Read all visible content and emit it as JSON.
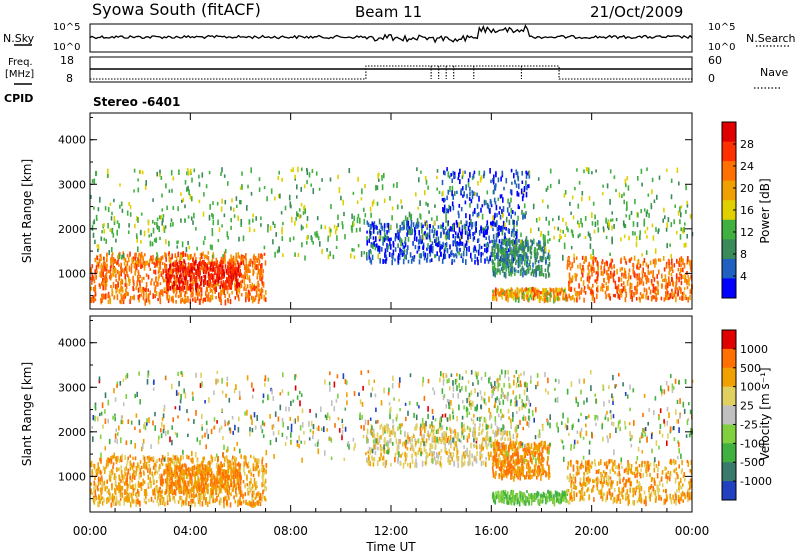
{
  "header": {
    "station": "Syowa South (fitACF)",
    "beam": "Beam 11",
    "date": "21/Oct/2009"
  },
  "nsky_panel": {
    "left_label": "N.Sky",
    "right_label": "N.Search",
    "left_ticks": [
      "10^5",
      "10^0"
    ],
    "right_ticks": [
      "10^5",
      "10^0"
    ]
  },
  "freq_panel": {
    "left_label_1": "Freq.",
    "left_label_2": "[MHz]",
    "left_ticks": [
      "18",
      "8"
    ],
    "right_label": "Nave",
    "right_ticks": [
      "60",
      "0"
    ],
    "cpid_label": "CPID",
    "cpid_value": "Stereo -6401"
  },
  "colors": {
    "power_scale": [
      "#0000ff",
      "#2060c0",
      "#3a8a5a",
      "#40b040",
      "#e0d000",
      "#f0a000",
      "#ff7000",
      "#ff3000",
      "#e00000"
    ],
    "velocity_scale": [
      "#2040c0",
      "#3a7a6a",
      "#40b040",
      "#80d040",
      "#c0c0c0",
      "#e0d060",
      "#f0a000",
      "#ff7000",
      "#e00000"
    ]
  },
  "chart_data": [
    {
      "type": "heatmap",
      "name": "power",
      "ylabel": "Slant Range [km]",
      "yticks": [
        "4000",
        "3000",
        "2000",
        "1000"
      ],
      "ylim": [
        200,
        4600
      ],
      "xlim": [
        0,
        24
      ],
      "colorbar_label": "Power [dB]",
      "colorbar_ticks": [
        "28",
        "24",
        "20",
        "16",
        "12",
        "8",
        "4"
      ],
      "colorbar_range": [
        0,
        32
      ]
    },
    {
      "type": "heatmap",
      "name": "velocity",
      "ylabel": "Slant Range [km]",
      "yticks": [
        "4000",
        "3000",
        "2000",
        "1000"
      ],
      "ylim": [
        200,
        4600
      ],
      "xlim": [
        0,
        24
      ],
      "colorbar_label": "Velocity [m s⁻¹]",
      "colorbar_ticks": [
        "1000",
        "500",
        "100",
        "25",
        "-25",
        "-100",
        "-500",
        "-1000"
      ]
    }
  ],
  "xaxis": {
    "label": "Time UT",
    "ticks": [
      "00:00",
      "04:00",
      "08:00",
      "12:00",
      "16:00",
      "20:00",
      "00:00"
    ]
  }
}
